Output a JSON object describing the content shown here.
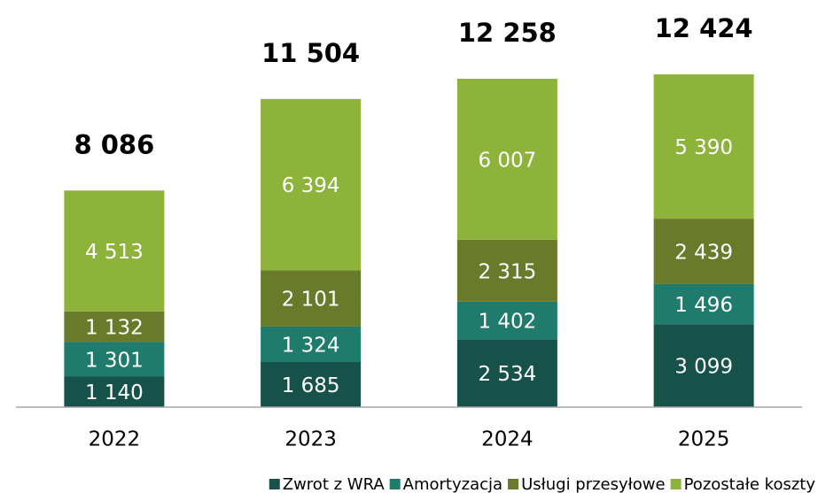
{
  "chart_data": {
    "type": "stacked_bar",
    "categories": [
      "2022",
      "2023",
      "2024",
      "2025"
    ],
    "ylim": [
      0,
      15000
    ],
    "series": [
      {
        "name": "Zwrot z WRA",
        "color": "#17524a",
        "values": [
          1140,
          1685,
          2534,
          3099
        ],
        "value_labels": [
          "1 140",
          "1 685",
          "2 534",
          "3 099"
        ]
      },
      {
        "name": "Amortyzacja",
        "color": "#1f7b6c",
        "values": [
          1301,
          1324,
          1402,
          1496
        ],
        "value_labels": [
          "1 301",
          "1 324",
          "1 402",
          "1 496"
        ]
      },
      {
        "name": "Usługi przesyłowe",
        "color": "#6a7a2b",
        "values": [
          1132,
          2101,
          2315,
          2439
        ],
        "value_labels": [
          "1 132",
          "2 101",
          "2 315",
          "2 439"
        ]
      },
      {
        "name": "Pozostałe koszty",
        "color": "#8eb33b",
        "values": [
          4513,
          6394,
          6007,
          5390
        ],
        "value_labels": [
          "4 513",
          "6 394",
          "6 007",
          "5 390"
        ]
      }
    ],
    "totals": {
      "values": [
        8086,
        11504,
        12258,
        12424
      ],
      "value_labels": [
        "8 086",
        "11 504",
        "12 258",
        "12 424"
      ]
    }
  }
}
